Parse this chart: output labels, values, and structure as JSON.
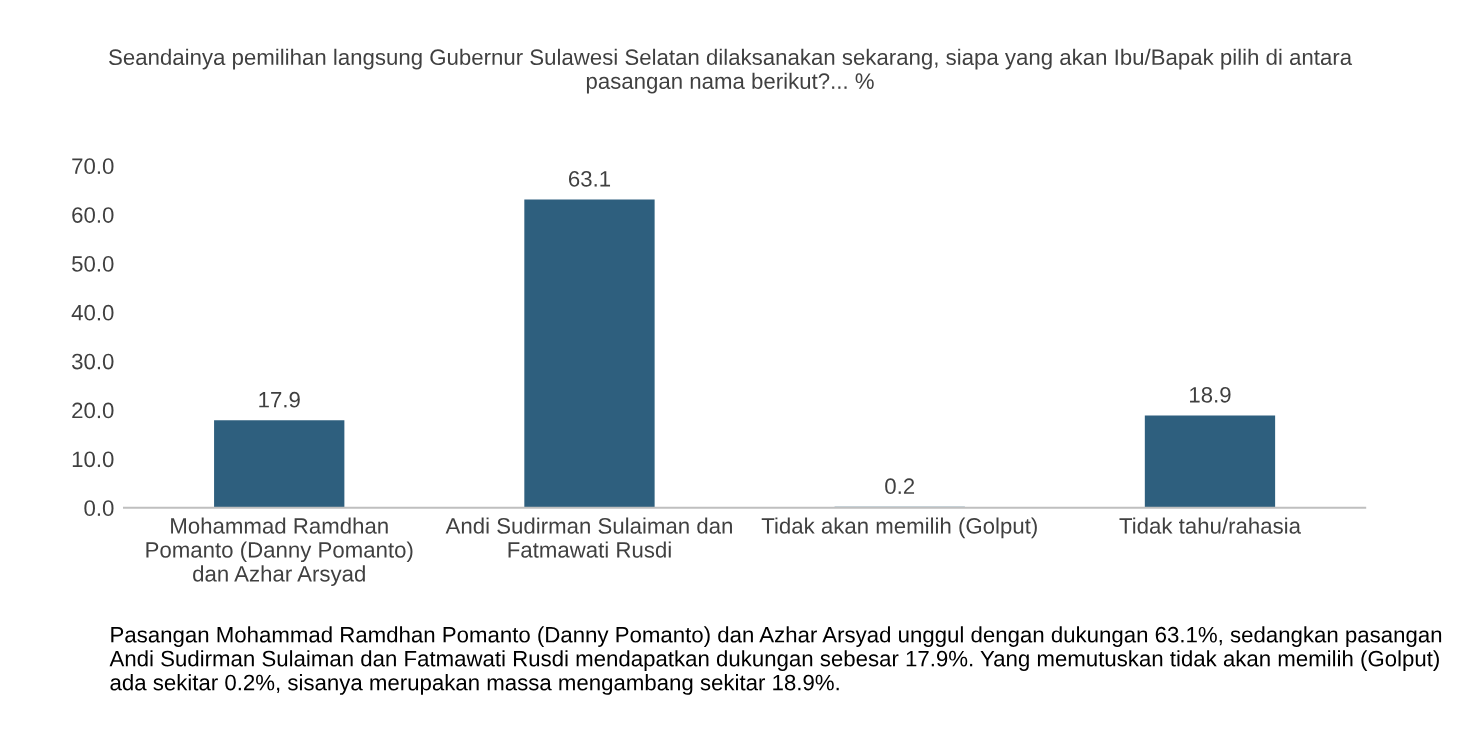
{
  "chart_data": {
    "type": "bar",
    "title": "Seandainya pemilihan langsung Gubernur Sulawesi Selatan dilaksanakan sekarang, siapa yang akan Ibu/Bapak pilih di antara\npasangan nama berikut?... %",
    "categories": [
      "Mohammad Ramdhan\nPomanto (Danny Pomanto)\ndan Azhar Arsyad",
      "Andi Sudirman Sulaiman dan\nFatmawati Rusdi",
      "Tidak akan memilih (Golput)",
      "Tidak tahu/rahasia"
    ],
    "values": [
      17.9,
      63.1,
      0.2,
      18.9
    ],
    "color": "#2e5f7e",
    "ylim": [
      0,
      70
    ],
    "yticks": [
      {
        "value": 0,
        "label": "0.0"
      },
      {
        "value": 10,
        "label": "10.0"
      },
      {
        "value": 20,
        "label": "20.0"
      },
      {
        "value": 30,
        "label": "30.0"
      },
      {
        "value": 40,
        "label": "40.0"
      },
      {
        "value": 50,
        "label": "50.0"
      },
      {
        "value": 60,
        "label": "60.0"
      },
      {
        "value": 70,
        "label": "70.0"
      }
    ],
    "data_labels": true,
    "grid": false,
    "annotations": [
      "Pasangan Mohammad Ramdhan Pomanto (Danny Pomanto) dan Azhar Arsyad unggul dengan dukungan 63.1%, sedangkan pasangan Andi Sudirman Sulaiman dan Fatmawati Rusdi mendapatkan dukungan sebesar 17.9%. Yang memutuskan tidak akan memilih (Golput) ada sekitar 0.2%, sisanya merupakan massa mengambang sekitar 18.9%."
    ]
  }
}
